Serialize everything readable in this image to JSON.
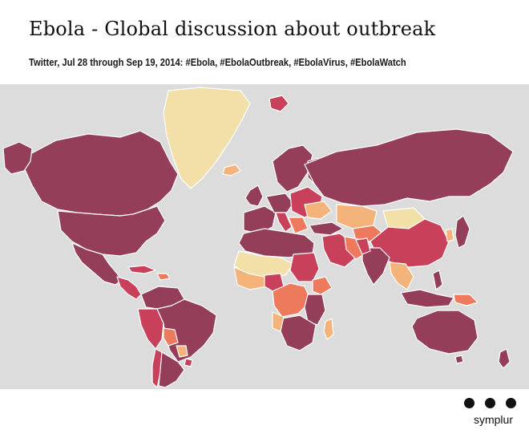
{
  "header": {
    "title": "Ebola - Global discussion about outbreak",
    "subtitle": "Twitter, Jul 28 through Sep 19, 2014: #Ebola, #EbolaOutbreak, #EbolaVirus, #EbolaWatch"
  },
  "map": {
    "ocean_color": "#dcdcdc",
    "palette": {
      "highest": "#953e5a",
      "high": "#c8405a",
      "medium": "#ed7a5c",
      "low": "#f3b37a",
      "lowest": "#f2e0a8"
    }
  },
  "brand": {
    "name": "symplur",
    "logo_icon": "three-dots-icon"
  }
}
